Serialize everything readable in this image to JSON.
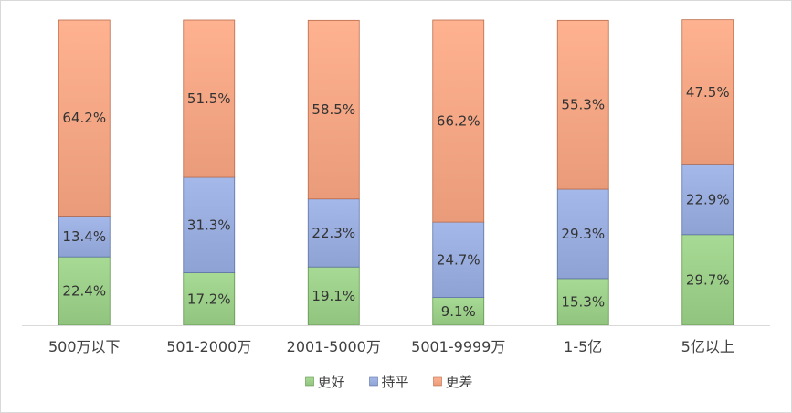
{
  "chart_data": {
    "type": "bar",
    "stacked": true,
    "normalized_to": 100,
    "categories": [
      "500万以下",
      "501-2000万",
      "2001-5000万",
      "5001-9999万",
      "1-5亿",
      "5亿以上"
    ],
    "series": [
      {
        "name": "更好",
        "values": [
          22.4,
          17.2,
          19.1,
          9.1,
          15.3,
          29.7
        ],
        "labels": [
          "22.4%",
          "17.2%",
          "19.1%",
          "9.1%",
          "15.3%",
          "29.7%"
        ],
        "color": "#9dd08a"
      },
      {
        "name": "持平",
        "values": [
          13.4,
          31.3,
          22.3,
          24.7,
          29.3,
          22.9
        ],
        "labels": [
          "13.4%",
          "31.3%",
          "22.3%",
          "24.7%",
          "29.3%",
          "22.9%"
        ],
        "color": "#9aaee0"
      },
      {
        "name": "更差",
        "values": [
          64.2,
          51.5,
          58.5,
          66.2,
          55.3,
          47.5
        ],
        "labels": [
          "64.2%",
          "51.5%",
          "58.5%",
          "66.2%",
          "55.3%",
          "47.5%"
        ],
        "color": "#f6a886"
      }
    ],
    "ylim": [
      0,
      100
    ],
    "grid": false,
    "legend_position": "bottom"
  }
}
